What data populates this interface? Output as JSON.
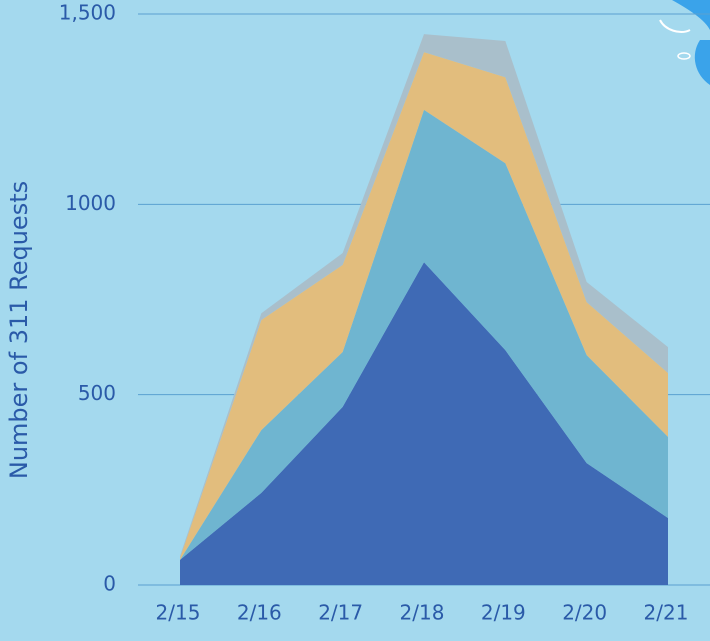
{
  "chart_data": {
    "type": "stacked_area",
    "y_label": "Number of 311 Requests",
    "categories": [
      "2/15",
      "2/16",
      "2/17",
      "2/18",
      "2/19",
      "2/20",
      "2/21"
    ],
    "series": [
      {
        "color": "#3f6ab5",
        "values": [
          66,
          242,
          468,
          848,
          617,
          320,
          176
        ]
      },
      {
        "color": "#6fb5d0",
        "values": [
          0,
          165,
          144,
          400,
          491,
          284,
          213
        ]
      },
      {
        "color": "#e2bd7d",
        "values": [
          5,
          289,
          229,
          152,
          226,
          139,
          168
        ]
      },
      {
        "color": "#a9bfcb",
        "values": [
          5,
          18,
          31,
          47,
          95,
          53,
          68
        ]
      }
    ],
    "ylim": [
      0,
      1500
    ],
    "yticks": [
      0,
      500,
      1000,
      {
        "value": 1500,
        "label": "1,500"
      }
    ],
    "grid": true
  }
}
